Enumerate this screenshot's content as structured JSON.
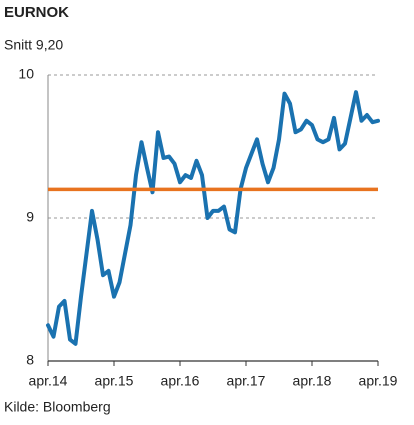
{
  "chart_data": {
    "type": "line",
    "title": "EURNOK",
    "subtitle": "Snitt 9,20",
    "source": "Kilde: Bloomberg",
    "categories": [
      "apr.14",
      null,
      null,
      null,
      null,
      null,
      null,
      null,
      null,
      null,
      null,
      null,
      "apr.15",
      null,
      null,
      null,
      null,
      null,
      null,
      null,
      null,
      null,
      null,
      null,
      "apr.16",
      null,
      null,
      null,
      null,
      null,
      null,
      null,
      null,
      null,
      null,
      null,
      "apr.17",
      null,
      null,
      null,
      null,
      null,
      null,
      null,
      null,
      null,
      null,
      null,
      "apr.18",
      null,
      null,
      null,
      null,
      null,
      null,
      null,
      null,
      null,
      null,
      null,
      "apr.19"
    ],
    "series": [
      {
        "name": "EURNOK",
        "color": "#1a72b0",
        "values": [
          8.25,
          8.17,
          8.38,
          8.42,
          8.15,
          8.12,
          8.45,
          8.75,
          9.05,
          8.85,
          8.6,
          8.63,
          8.45,
          8.55,
          8.75,
          8.95,
          9.3,
          9.53,
          9.35,
          9.18,
          9.6,
          9.42,
          9.43,
          9.38,
          9.25,
          9.3,
          9.28,
          9.4,
          9.3,
          9.0,
          9.05,
          9.05,
          9.08,
          8.92,
          8.9,
          9.2,
          9.35,
          9.45,
          9.55,
          9.38,
          9.25,
          9.35,
          9.55,
          9.87,
          9.8,
          9.6,
          9.62,
          9.68,
          9.65,
          9.55,
          9.53,
          9.55,
          9.7,
          9.48,
          9.52,
          9.7,
          9.88,
          9.68,
          9.72,
          9.67,
          9.68
        ]
      }
    ],
    "average": 9.2,
    "average_color": "#e8731f",
    "ylim": [
      8,
      10
    ],
    "yticks": [
      8,
      9,
      10
    ],
    "grid": true
  }
}
